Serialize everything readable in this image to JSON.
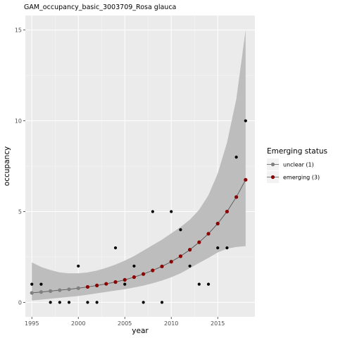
{
  "chart_data": {
    "type": "scatter",
    "title": "GAM_occupancy_basic_3003709_Rosa glauca",
    "xlabel": "year",
    "ylabel": "occupancy",
    "xlim": [
      1994.3,
      2019.0
    ],
    "ylim": [
      -0.8,
      15.8
    ],
    "x_ticks": [
      1995,
      2000,
      2005,
      2010,
      2015
    ],
    "y_ticks": [
      0,
      5,
      10,
      15
    ],
    "grid": true,
    "legend": {
      "title": "Emerging status",
      "placement": "right",
      "entries": [
        {
          "label": "unclear (1)",
          "color": "#7f7f7f"
        },
        {
          "label": "emerging (3)",
          "color": "#8b0000"
        }
      ]
    },
    "observed": {
      "color": "#000000",
      "points": [
        [
          1995,
          1
        ],
        [
          1996,
          1
        ],
        [
          1997,
          0
        ],
        [
          1998,
          0
        ],
        [
          1999,
          0
        ],
        [
          2000,
          2
        ],
        [
          2001,
          0
        ],
        [
          2002,
          0
        ],
        [
          2004,
          3
        ],
        [
          2005,
          1
        ],
        [
          2006,
          2
        ],
        [
          2007,
          0
        ],
        [
          2008,
          5
        ],
        [
          2009,
          0
        ],
        [
          2010,
          5
        ],
        [
          2011,
          4
        ],
        [
          2012,
          2
        ],
        [
          2013,
          1
        ],
        [
          2014,
          1
        ],
        [
          2015,
          3
        ],
        [
          2016,
          3
        ],
        [
          2017,
          8
        ],
        [
          2018,
          10
        ]
      ]
    },
    "fitted": {
      "x": [
        1995,
        1996,
        1997,
        1998,
        1999,
        2000,
        2001,
        2002,
        2003,
        2004,
        2005,
        2006,
        2007,
        2008,
        2009,
        2010,
        2011,
        2012,
        2013,
        2014,
        2015,
        2016,
        2017,
        2018
      ],
      "y": [
        0.52,
        0.57,
        0.62,
        0.67,
        0.72,
        0.78,
        0.85,
        0.93,
        1.02,
        1.12,
        1.24,
        1.39,
        1.56,
        1.76,
        1.98,
        2.24,
        2.54,
        2.9,
        3.31,
        3.78,
        4.34,
        5.0,
        5.8,
        6.75
      ],
      "status": [
        "unclear",
        "unclear",
        "unclear",
        "unclear",
        "unclear",
        "unclear",
        "emerging",
        "emerging",
        "emerging",
        "emerging",
        "emerging",
        "emerging",
        "emerging",
        "emerging",
        "emerging",
        "emerging",
        "emerging",
        "emerging",
        "emerging",
        "emerging",
        "emerging",
        "emerging",
        "emerging",
        "emerging"
      ],
      "status_colors": {
        "unclear": "#7f7f7f",
        "emerging": "#8b0000"
      },
      "ci_lower": [
        0.1,
        0.15,
        0.2,
        0.25,
        0.3,
        0.35,
        0.42,
        0.5,
        0.57,
        0.65,
        0.72,
        0.82,
        0.92,
        1.05,
        1.2,
        1.38,
        1.6,
        1.88,
        2.17,
        2.45,
        2.75,
        2.95,
        3.05,
        3.1
      ],
      "ci_upper": [
        2.2,
        1.95,
        1.78,
        1.65,
        1.6,
        1.6,
        1.65,
        1.75,
        1.9,
        2.08,
        2.3,
        2.55,
        2.85,
        3.15,
        3.45,
        3.8,
        4.15,
        4.55,
        5.1,
        5.9,
        7.1,
        8.8,
        11.2,
        15.0
      ],
      "line_color": "#555555",
      "ribbon_color": "#bdbdbd"
    }
  }
}
